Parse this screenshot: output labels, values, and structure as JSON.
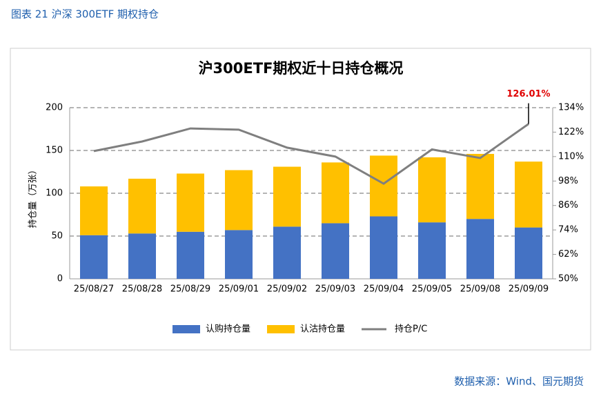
{
  "header": "图表 21 沪深 300ETF 期权持仓",
  "source": "数据来源：Wind、国元期货",
  "chart_data": {
    "type": "bar",
    "title": "沪300ETF期权近十日持仓概况",
    "y_label": "持仓量（万张）",
    "stacked": true,
    "categories": [
      "25/08/27",
      "25/08/28",
      "25/08/29",
      "25/09/01",
      "25/09/02",
      "25/09/03",
      "25/09/04",
      "25/09/05",
      "25/09/08",
      "25/09/09"
    ],
    "series": [
      {
        "name": "认购持仓量",
        "type": "bar",
        "color": "#4472c4",
        "values": [
          51,
          53,
          55,
          57,
          61,
          65,
          73,
          66,
          70,
          60
        ]
      },
      {
        "name": "认沽持仓量",
        "type": "bar",
        "color": "#ffc000",
        "values": [
          57,
          64,
          68,
          70,
          70,
          71,
          71,
          76,
          76,
          77
        ]
      },
      {
        "name": "持仓P/C",
        "type": "line",
        "axis": "y2",
        "color": "#7f7f7f",
        "values": [
          112.7,
          117.4,
          123.8,
          123.2,
          114.4,
          110.0,
          96.7,
          113.5,
          109.3,
          126.01
        ],
        "value_labels": [
          null,
          null,
          null,
          null,
          null,
          null,
          null,
          null,
          null,
          "126.01%"
        ],
        "label_color": "#e00000"
      }
    ],
    "ylim": [
      0,
      200
    ],
    "yticks": [
      0,
      50,
      100,
      150,
      200
    ],
    "y2lim": [
      50,
      134
    ],
    "y2ticks": [
      {
        "value": 50,
        "label": "50%"
      },
      {
        "value": 62,
        "label": "62%"
      },
      {
        "value": 74,
        "label": "74%"
      },
      {
        "value": 86,
        "label": "86%"
      },
      {
        "value": 98,
        "label": "98%"
      },
      {
        "value": 110,
        "label": "110%"
      },
      {
        "value": 122,
        "label": "122%"
      },
      {
        "value": 134,
        "label": "134%"
      }
    ],
    "grid": true,
    "legend": "bottom"
  }
}
